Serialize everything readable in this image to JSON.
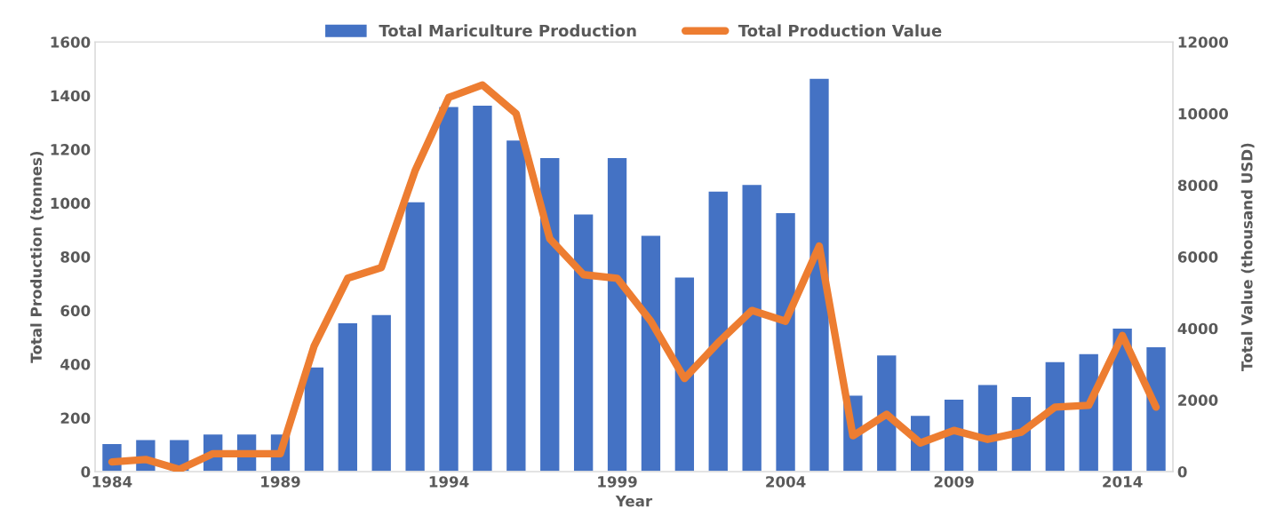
{
  "chart_data": {
    "type": "bar",
    "xlabel": "Year",
    "ylabel": "Total Production (tonnes)",
    "y2label": "Total Value (thousand USD)",
    "x": [
      1984,
      1985,
      1986,
      1987,
      1988,
      1989,
      1990,
      1991,
      1992,
      1993,
      1994,
      1995,
      1996,
      1997,
      1998,
      1999,
      2000,
      2001,
      2002,
      2003,
      2004,
      2005,
      2006,
      2007,
      2008,
      2009,
      2010,
      2011,
      2012,
      2013,
      2014,
      2015
    ],
    "series": [
      {
        "name": "Total Mariculture Production",
        "color": "#4472c4",
        "values": [
          105,
          120,
          120,
          140,
          140,
          140,
          390,
          555,
          585,
          1005,
          1360,
          1365,
          1235,
          1170,
          960,
          1170,
          880,
          725,
          1045,
          1070,
          965,
          1465,
          285,
          435,
          210,
          270,
          325,
          280,
          410,
          440,
          535,
          465
        ]
      },
      {
        "name": "Total Production Value",
        "type": "line",
        "axis": "y2",
        "color": "#ed7d31",
        "values": [
          270,
          340,
          60,
          500,
          500,
          500,
          3500,
          5400,
          5700,
          8400,
          10450,
          10800,
          10000,
          6500,
          5500,
          5400,
          4200,
          2600,
          3600,
          4500,
          4200,
          6300,
          1000,
          1600,
          800,
          1150,
          900,
          1100,
          1800,
          1850,
          3800,
          1800
        ]
      }
    ],
    "xlim": [
      1983.5,
      2015.5
    ],
    "xticks": [
      1984,
      1989,
      1994,
      1999,
      2004,
      2009,
      2014
    ],
    "ylim": [
      0,
      1600
    ],
    "yticks": [
      0,
      200,
      400,
      600,
      800,
      1000,
      1200,
      1400,
      1600
    ],
    "y2lim": [
      0,
      12000
    ],
    "y2ticks": [
      0,
      2000,
      4000,
      6000,
      8000,
      10000,
      12000
    ],
    "grid": false,
    "legend": "top",
    "marker": "none",
    "line_style": "solid"
  }
}
